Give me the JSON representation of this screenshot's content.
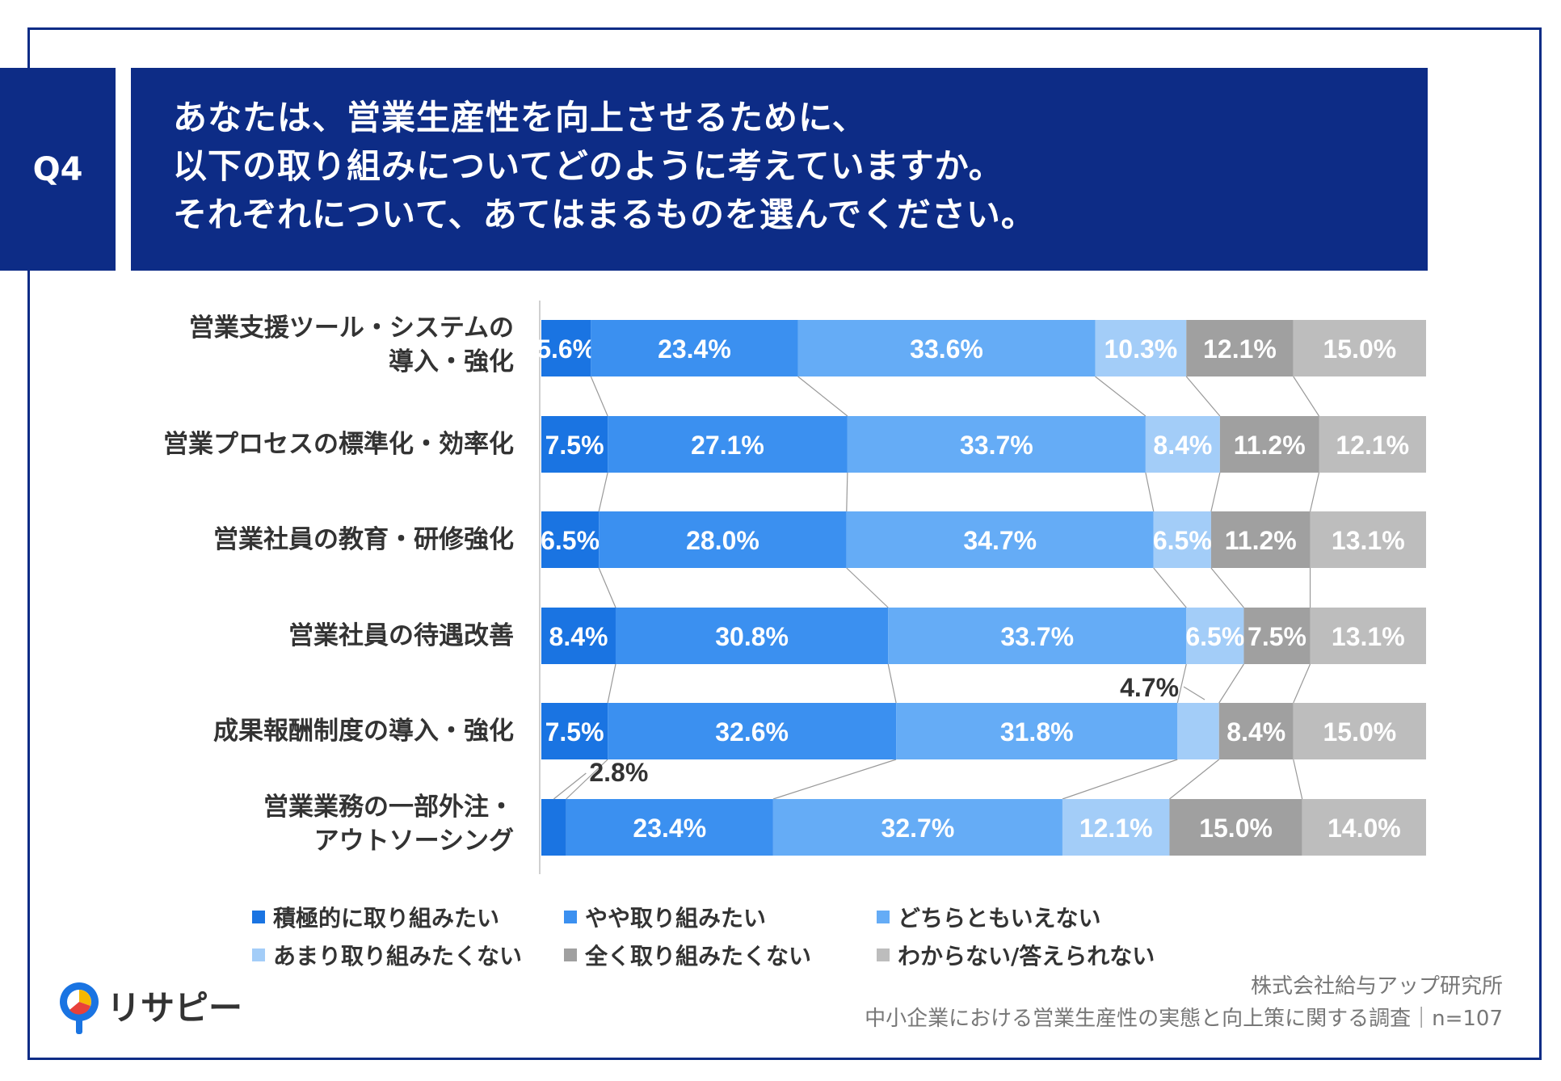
{
  "badge": "Q4",
  "title_lines": [
    "あなたは、営業生産性を向上させるために、",
    "以下の取り組みについてどのように考えていますか。",
    "それぞれについて、あてはまるものを選んでください。"
  ],
  "chart_data": {
    "type": "bar",
    "orientation": "horizontal",
    "stacked": true,
    "percent_stacked": true,
    "categories": [
      [
        "営業支援ツール・システムの",
        "導入・強化"
      ],
      [
        "営業プロセスの標準化・効率化"
      ],
      [
        "営業社員の教育・研修強化"
      ],
      [
        "営業社員の待遇改善"
      ],
      [
        "成果報酬制度の導入・強化"
      ],
      [
        "営業業務の一部外注・",
        "アウトソーシング"
      ]
    ],
    "series": [
      {
        "name": "積極的に取り組みたい",
        "color": "#1a74e2",
        "values": [
          5.6,
          7.5,
          6.5,
          8.4,
          7.5,
          2.8
        ],
        "labels": [
          "5.6%",
          "7.5%",
          "6.5%",
          "8.4%",
          "7.5%",
          "2.8%"
        ]
      },
      {
        "name": "やや取り組みたい",
        "color": "#3b90f0",
        "values": [
          23.4,
          27.1,
          28.0,
          30.8,
          32.6,
          23.4
        ],
        "labels": [
          "23.4%",
          "27.1%",
          "28.0%",
          "30.8%",
          "32.6%",
          "23.4%"
        ]
      },
      {
        "name": "どちらともいえない",
        "color": "#65acf6",
        "values": [
          33.6,
          33.7,
          34.7,
          33.7,
          31.8,
          32.7
        ],
        "labels": [
          "33.6%",
          "33.7%",
          "34.7%",
          "33.7%",
          "31.8%",
          "32.7%"
        ]
      },
      {
        "name": "あまり取り組みたくない",
        "color": "#a3cdf8",
        "values": [
          10.3,
          8.4,
          6.5,
          6.5,
          4.7,
          12.1
        ],
        "labels": [
          "10.3%",
          "8.4%",
          "6.5%",
          "6.5%",
          "4.7%",
          "12.1%"
        ]
      },
      {
        "name": "全く取り組みたくない",
        "color": "#a0a0a0",
        "values": [
          12.1,
          11.2,
          11.2,
          7.5,
          8.4,
          15.0
        ],
        "labels": [
          "12.1%",
          "11.2%",
          "11.2%",
          "7.5%",
          "8.4%",
          "15.0%"
        ]
      },
      {
        "name": "わからない/答えられない",
        "color": "#bdbdbd",
        "values": [
          15.0,
          12.1,
          13.1,
          13.1,
          15.0,
          14.0
        ],
        "labels": [
          "15.0%",
          "12.1%",
          "13.1%",
          "13.1%",
          "15.0%",
          "14.0%"
        ]
      }
    ],
    "xlim": [
      0,
      100
    ],
    "grid": false,
    "legend_position": "bottom",
    "callouts": [
      {
        "category_index": 4,
        "series_index": 3,
        "label": "4.7%"
      },
      {
        "category_index": 5,
        "series_index": 0,
        "label": "2.8%"
      }
    ]
  },
  "source": {
    "company": "株式会社給与アップ研究所",
    "survey": "中小企業における営業生産性の実態と向上策に関する調査｜n=107"
  },
  "logo": {
    "text": "リサピー"
  }
}
